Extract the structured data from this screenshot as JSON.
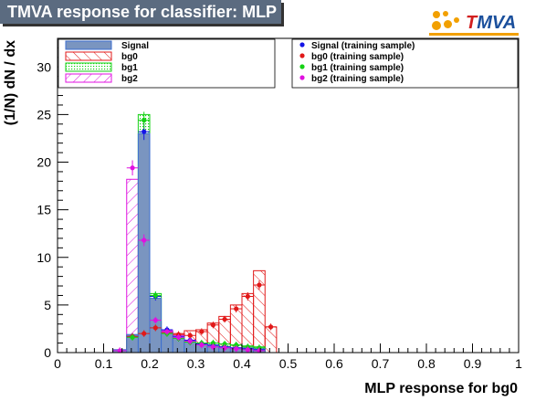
{
  "title": "TMVA response for classifier: MLP",
  "logo": {
    "t": "T",
    "rest": "MVA"
  },
  "chart_data": {
    "type": "bar",
    "xlabel": "MLP response for bg0",
    "ylabel": "(1/N) dN / dx",
    "xlim": [
      0,
      1
    ],
    "ylim": [
      0,
      33
    ],
    "xticks": [
      "0",
      "0.1",
      "0.2",
      "0.3",
      "0.4",
      "0.5",
      "0.6",
      "0.7",
      "0.8",
      "0.9",
      "1"
    ],
    "yticks": [
      "0",
      "5",
      "10",
      "15",
      "20",
      "25",
      "30"
    ],
    "grid": false,
    "bin_edges": [
      0.12,
      0.15,
      0.175,
      0.2,
      0.225,
      0.25,
      0.275,
      0.3,
      0.325,
      0.35,
      0.375,
      0.4,
      0.425,
      0.45,
      0.475
    ],
    "legend_left": [
      "Signal",
      "bg0",
      "bg1",
      "bg2"
    ],
    "legend_right": [
      "Signal (training sample)",
      "bg0 (training sample)",
      "bg1 (training sample)",
      "bg2 (training sample)"
    ],
    "series": [
      {
        "name": "Signal",
        "color": "#3d6fcf",
        "fill": "#7a95c0",
        "values": [
          0.3,
          1.9,
          23.0,
          5.7,
          2.2,
          1.6,
          1.2,
          0.9,
          0.7,
          0.6,
          0.5,
          0.5,
          0.4,
          0.0
        ]
      },
      {
        "name": "bg0",
        "color": "#e11919",
        "fill": "hatch-red",
        "values": [
          0.1,
          1.8,
          1.6,
          2.6,
          2.0,
          2.0,
          2.3,
          2.4,
          3.1,
          3.8,
          5.0,
          6.2,
          8.6,
          2.7
        ]
      },
      {
        "name": "bg1",
        "color": "#15d115",
        "fill": "dots-green",
        "values": [
          0.0,
          1.3,
          25.0,
          6.2,
          2.0,
          1.5,
          1.2,
          1.0,
          1.0,
          0.9,
          0.8,
          0.7,
          0.6,
          0.0
        ]
      },
      {
        "name": "bg2",
        "color": "#e010e0",
        "fill": "hatch-magenta",
        "values": [
          0.3,
          18.2,
          11.7,
          3.2,
          2.3,
          1.8,
          1.3,
          0.9,
          0.7,
          0.5,
          0.4,
          0.3,
          0.2,
          0.0
        ]
      }
    ],
    "training": [
      {
        "name": "Signal (training sample)",
        "color": "#1414e6",
        "values": [
          0.0,
          1.7,
          23.2,
          5.9,
          2.4,
          1.7,
          1.3,
          0.9,
          0.8,
          0.6,
          0.5,
          0.4,
          0.3,
          0.0
        ]
      },
      {
        "name": "bg0 (training sample)",
        "color": "#e11919",
        "values": [
          0.0,
          1.7,
          2.0,
          2.6,
          2.1,
          1.9,
          1.8,
          2.2,
          2.9,
          3.5,
          4.6,
          5.9,
          7.1,
          2.7
        ]
      },
      {
        "name": "bg1 (training sample)",
        "color": "#15d115",
        "values": [
          0.0,
          1.6,
          24.4,
          6.0,
          2.0,
          1.5,
          1.1,
          1.0,
          1.0,
          0.9,
          0.8,
          0.6,
          0.5,
          0.0
        ]
      },
      {
        "name": "bg2 (training sample)",
        "color": "#e010e0",
        "values": [
          0.2,
          19.4,
          11.8,
          3.4,
          2.2,
          1.6,
          1.2,
          0.8,
          0.6,
          0.5,
          0.4,
          0.3,
          0.2,
          0.0
        ]
      }
    ]
  }
}
